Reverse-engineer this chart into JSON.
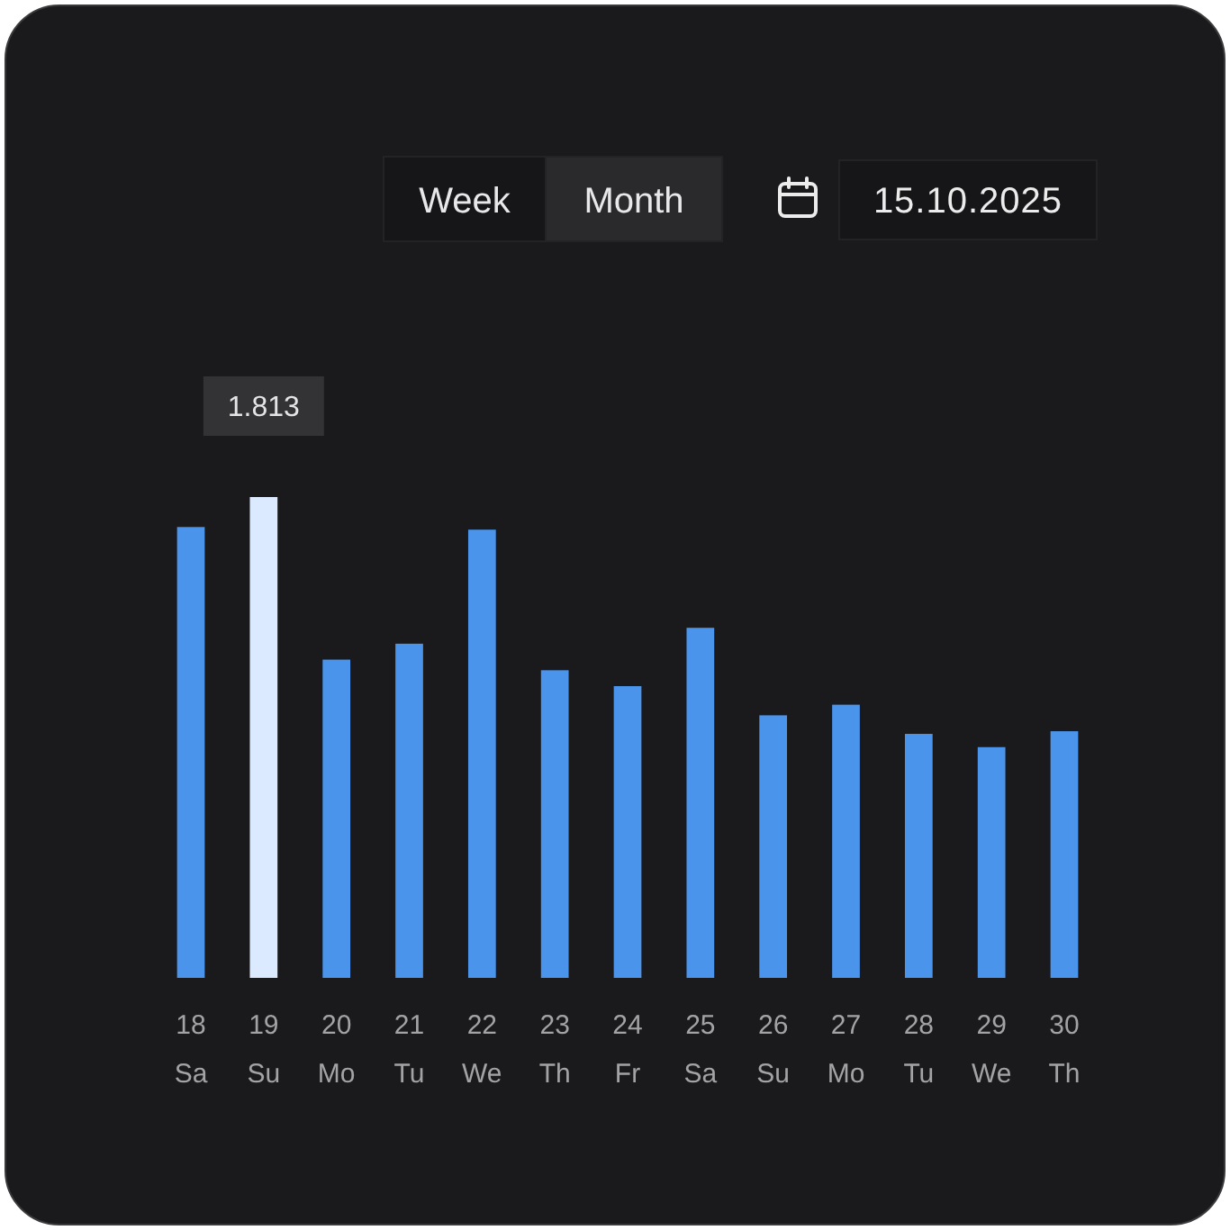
{
  "chart_data": {
    "type": "bar",
    "categories": [
      "18\nSa",
      "19\nSu",
      "20\nMo",
      "21\nTu",
      "22\nWe",
      "23\nTh",
      "24\nFr",
      "25\nSa",
      "26\nSu",
      "27\nMo",
      "28\nTu",
      "29\nWe",
      "30\nTh"
    ],
    "values": [
      1.7,
      1.813,
      1.2,
      1.26,
      1.69,
      1.16,
      1.1,
      1.32,
      0.99,
      1.03,
      0.92,
      0.87,
      0.93
    ],
    "colors": [
      "#4a94ec",
      "#dceaff",
      "#4a94ec",
      "#4a94ec",
      "#4a94ec",
      "#4a94ec",
      "#4a94ec",
      "#4a94ec",
      "#4a94ec",
      "#4a94ec",
      "#4a94ec",
      "#4a94ec",
      "#4a94ec"
    ],
    "value_labels": [
      null,
      "1.813",
      null,
      null,
      null,
      null,
      null,
      null,
      null,
      null,
      null,
      null,
      null
    ],
    "annotations": [
      "Week",
      "Month",
      "15.10.2025"
    ]
  }
}
